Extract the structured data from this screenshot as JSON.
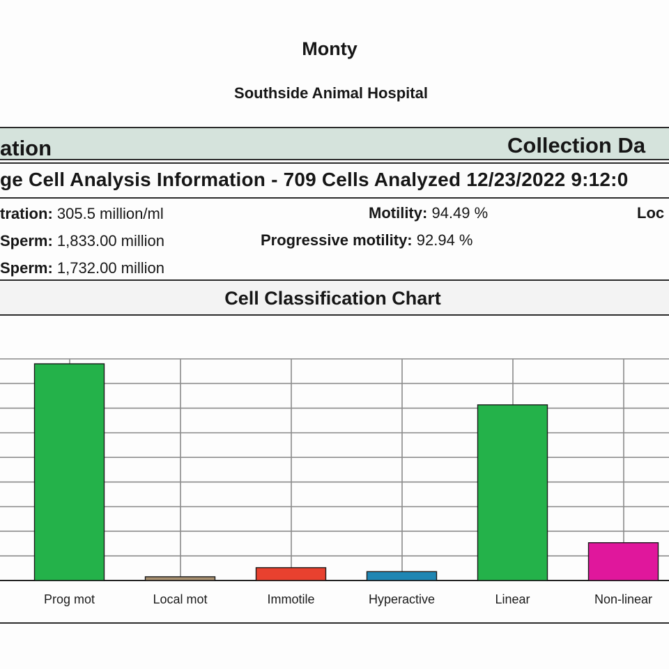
{
  "header": {
    "patient_name": "Monty",
    "clinic_name": "Southside Animal Hospital"
  },
  "sections": {
    "collection_info_label": "ation",
    "collection_date_label": "Collection Da",
    "analysis_heading": "ge Cell Analysis Information - 709 Cells Analyzed 12/23/2022 9:12:0",
    "chart_heading": "Cell Classification Chart"
  },
  "stats": {
    "concentration": {
      "label": "tration:",
      "value": "305.5 million/ml"
    },
    "total_sperm": {
      "label": "Sperm:",
      "value": "1,833.00 million"
    },
    "progressive_sperm": {
      "label": "Sperm:",
      "value": "1,732.00 million"
    },
    "motility": {
      "label": "Motility:",
      "value": "94.49 %"
    },
    "progressive_motility": {
      "label": "Progressive motility:",
      "value": "92.94 %"
    },
    "local_label": "Loc"
  },
  "chart_data": {
    "type": "bar",
    "categories": [
      "Prog mot",
      "Local mot",
      "Immotile",
      "Hyperactive",
      "Linear",
      "Non-linear"
    ],
    "values": [
      92.9,
      1.6,
      5.5,
      3.8,
      75.3,
      16.2
    ],
    "ylim": [
      0,
      95
    ],
    "colors": [
      "#24b24a",
      "#a89070",
      "#e8412f",
      "#1f86b3",
      "#24b24a",
      "#e0179c"
    ],
    "grid": true,
    "title": "",
    "xlabel": "",
    "ylabel": ""
  }
}
